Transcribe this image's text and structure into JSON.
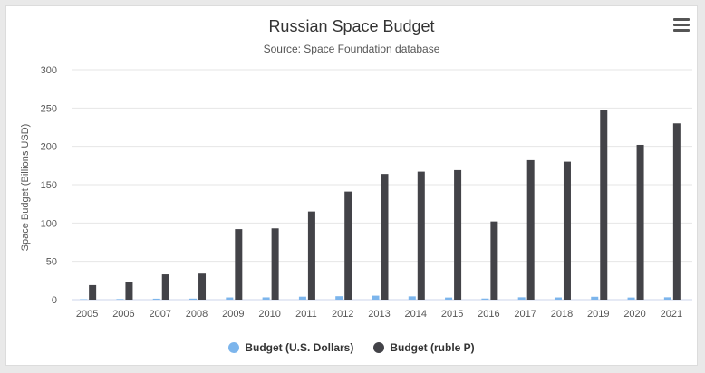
{
  "chart_data": {
    "type": "bar",
    "title": "Russian Space Budget",
    "subtitle": "Source: Space Foundation database",
    "xlabel": "",
    "ylabel": "Space Budget (Billions USD)",
    "ylim": [
      0,
      300
    ],
    "yticks": [
      0,
      50,
      100,
      150,
      200,
      250,
      300
    ],
    "grid": true,
    "legend_position": "bottom",
    "categories": [
      "2005",
      "2006",
      "2007",
      "2008",
      "2009",
      "2010",
      "2011",
      "2012",
      "2013",
      "2014",
      "2015",
      "2016",
      "2017",
      "2018",
      "2019",
      "2020",
      "2021"
    ],
    "series": [
      {
        "name": "Budget (U.S. Dollars)",
        "color": "#7cb5ec",
        "values": [
          0.6,
          0.8,
          1.3,
          1.4,
          2.9,
          3.0,
          3.9,
          4.5,
          5.2,
          4.3,
          2.8,
          1.5,
          3.1,
          2.9,
          3.8,
          2.8,
          3.1
        ]
      },
      {
        "name": "Budget (ruble P)",
        "color": "#434348",
        "values": [
          19,
          23,
          33,
          34,
          92,
          93,
          115,
          141,
          164,
          167,
          169,
          102,
          182,
          180,
          248,
          202,
          230
        ]
      }
    ]
  },
  "menu": {
    "icon": "hamburger-menu-icon"
  }
}
